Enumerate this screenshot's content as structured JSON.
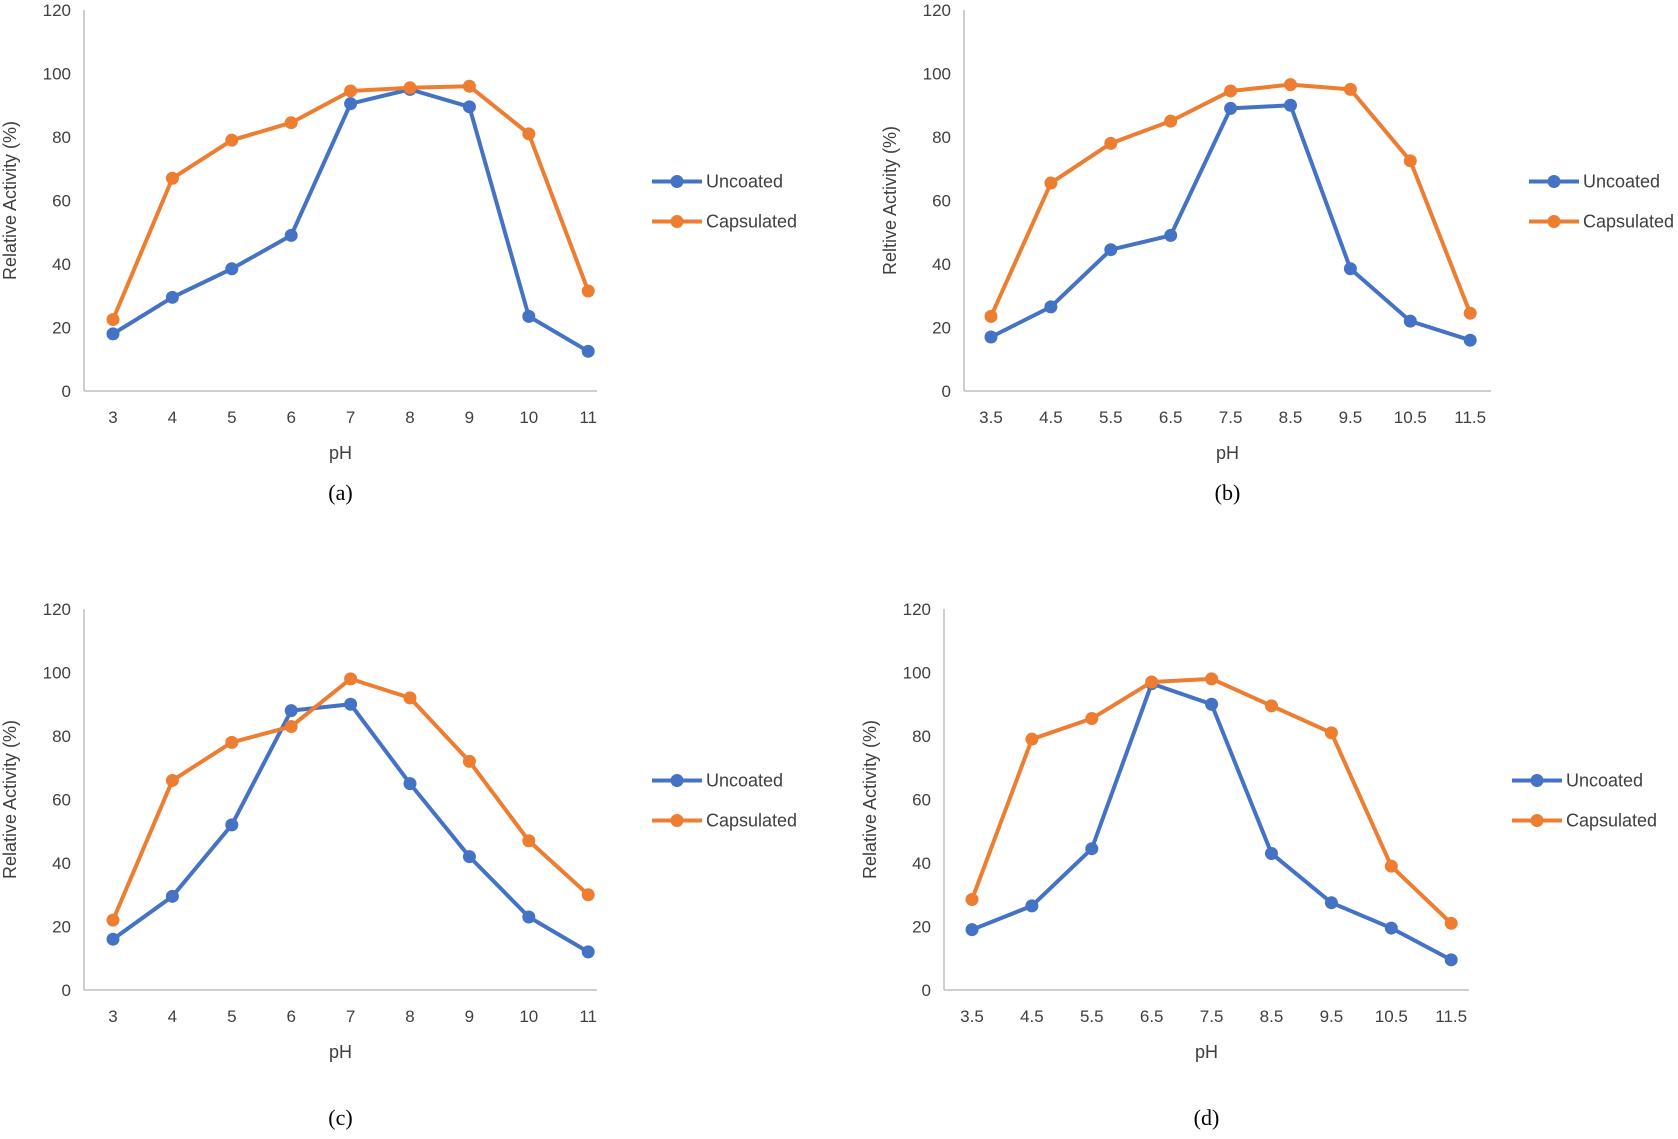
{
  "colors": {
    "uncoated": "#4472c4",
    "capsulated": "#ed7d31",
    "axis": "#bfbfbf"
  },
  "chart_data": [
    {
      "type": "line",
      "caption": "(a)",
      "xlabel": "pH",
      "ylabel": "Relative Activity (%)",
      "ylim": [
        0,
        120
      ],
      "yticks": [
        "0",
        "20",
        "40",
        "60",
        "80",
        "100",
        "120"
      ],
      "categories": [
        "3",
        "4",
        "5",
        "6",
        "7",
        "8",
        "9",
        "10",
        "11"
      ],
      "legend_position": "right",
      "series": [
        {
          "name": "Uncoated",
          "values": [
            18,
            29.5,
            38.5,
            49,
            90.5,
            95,
            89.5,
            23.5,
            12.5
          ]
        },
        {
          "name": "Capsulated",
          "values": [
            22.5,
            67,
            79,
            84.5,
            94.5,
            95.5,
            96,
            81,
            31.5
          ]
        }
      ]
    },
    {
      "type": "line",
      "caption": "(b)",
      "xlabel": "pH",
      "ylabel": "Reltive Activity (%)",
      "ylim": [
        0,
        120
      ],
      "yticks": [
        "0",
        "20",
        "40",
        "60",
        "80",
        "100",
        "120"
      ],
      "categories": [
        "3.5",
        "4.5",
        "5.5",
        "6.5",
        "7.5",
        "8.5",
        "9.5",
        "10.5",
        "11.5"
      ],
      "legend_position": "right",
      "series": [
        {
          "name": "Uncoated",
          "values": [
            17,
            26.5,
            44.5,
            49,
            89,
            90,
            38.5,
            22,
            16
          ]
        },
        {
          "name": "Capsulated",
          "values": [
            23.5,
            65.5,
            78,
            85,
            94.5,
            96.5,
            95,
            72.5,
            24.5
          ]
        }
      ]
    },
    {
      "type": "line",
      "caption": "(c)",
      "xlabel": "pH",
      "ylabel": "Relative Activity (%)",
      "ylim": [
        0,
        120
      ],
      "yticks": [
        "0",
        "20",
        "40",
        "60",
        "80",
        "100",
        "120"
      ],
      "categories": [
        "3",
        "4",
        "5",
        "6",
        "7",
        "8",
        "9",
        "10",
        "11"
      ],
      "legend_position": "right",
      "series": [
        {
          "name": "Uncoated",
          "values": [
            16,
            29.5,
            52,
            88,
            90,
            65,
            42,
            23,
            12
          ]
        },
        {
          "name": "Capsulated",
          "values": [
            22,
            66,
            78,
            83,
            98,
            92,
            72,
            47,
            30
          ]
        }
      ]
    },
    {
      "type": "line",
      "caption": "(d)",
      "xlabel": "pH",
      "ylabel": "Relative Activity (%)",
      "ylim": [
        0,
        120
      ],
      "yticks": [
        "0",
        "20",
        "40",
        "60",
        "80",
        "100",
        "120"
      ],
      "categories": [
        "3.5",
        "4.5",
        "5.5",
        "6.5",
        "7.5",
        "8.5",
        "9.5",
        "10.5",
        "11.5"
      ],
      "legend_position": "right",
      "series": [
        {
          "name": "Uncoated",
          "values": [
            19,
            26.5,
            44.5,
            96.5,
            90,
            43,
            27.5,
            19.5,
            9.5
          ]
        },
        {
          "name": "Capsulated",
          "values": [
            28.5,
            79,
            85.5,
            97,
            98,
            89.5,
            81,
            39,
            21
          ]
        }
      ]
    }
  ]
}
